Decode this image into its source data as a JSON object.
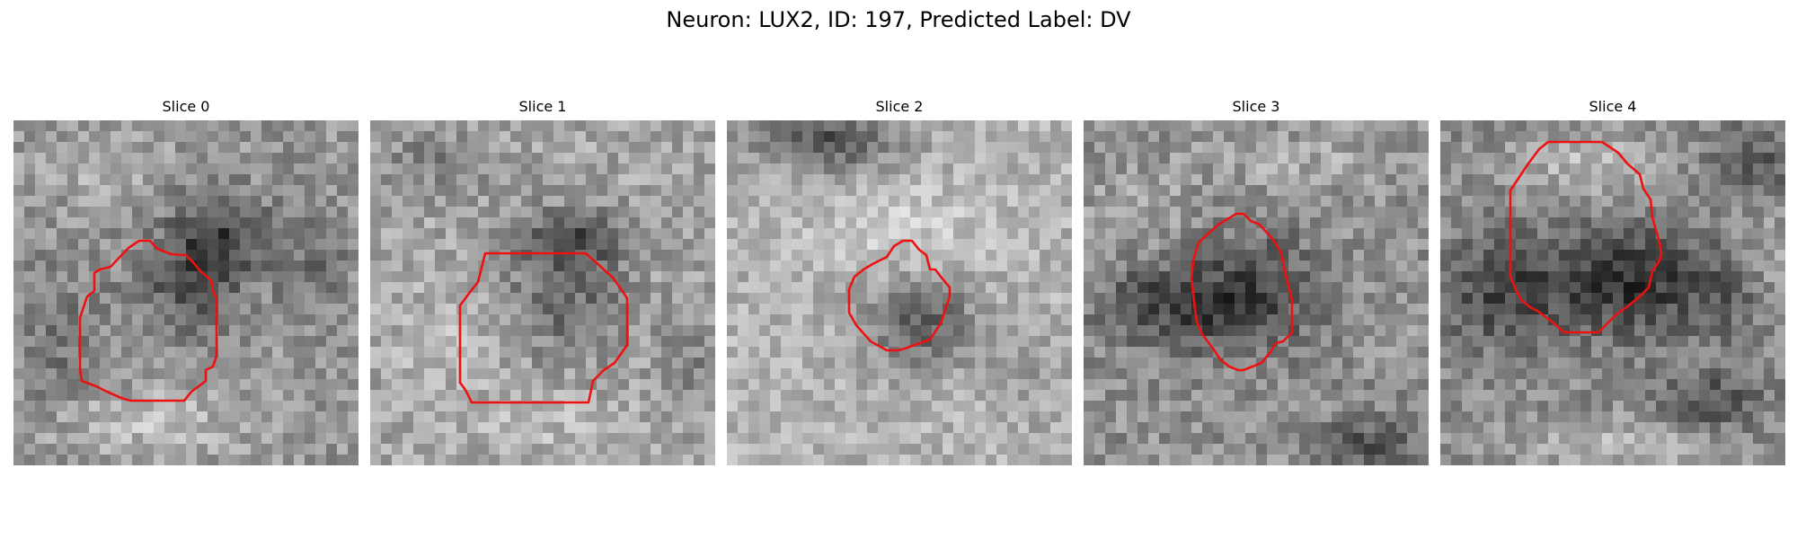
{
  "figure": {
    "title": "Neuron: LUX2, ID: 197, Predicted Label: DV"
  },
  "colors": {
    "contour": "#ee1111",
    "background": "#ffffff"
  },
  "panels": [
    {
      "title": "Slice 0"
    },
    {
      "title": "Slice 1"
    },
    {
      "title": "Slice 2"
    },
    {
      "title": "Slice 3"
    },
    {
      "title": "Slice 4"
    }
  ]
}
